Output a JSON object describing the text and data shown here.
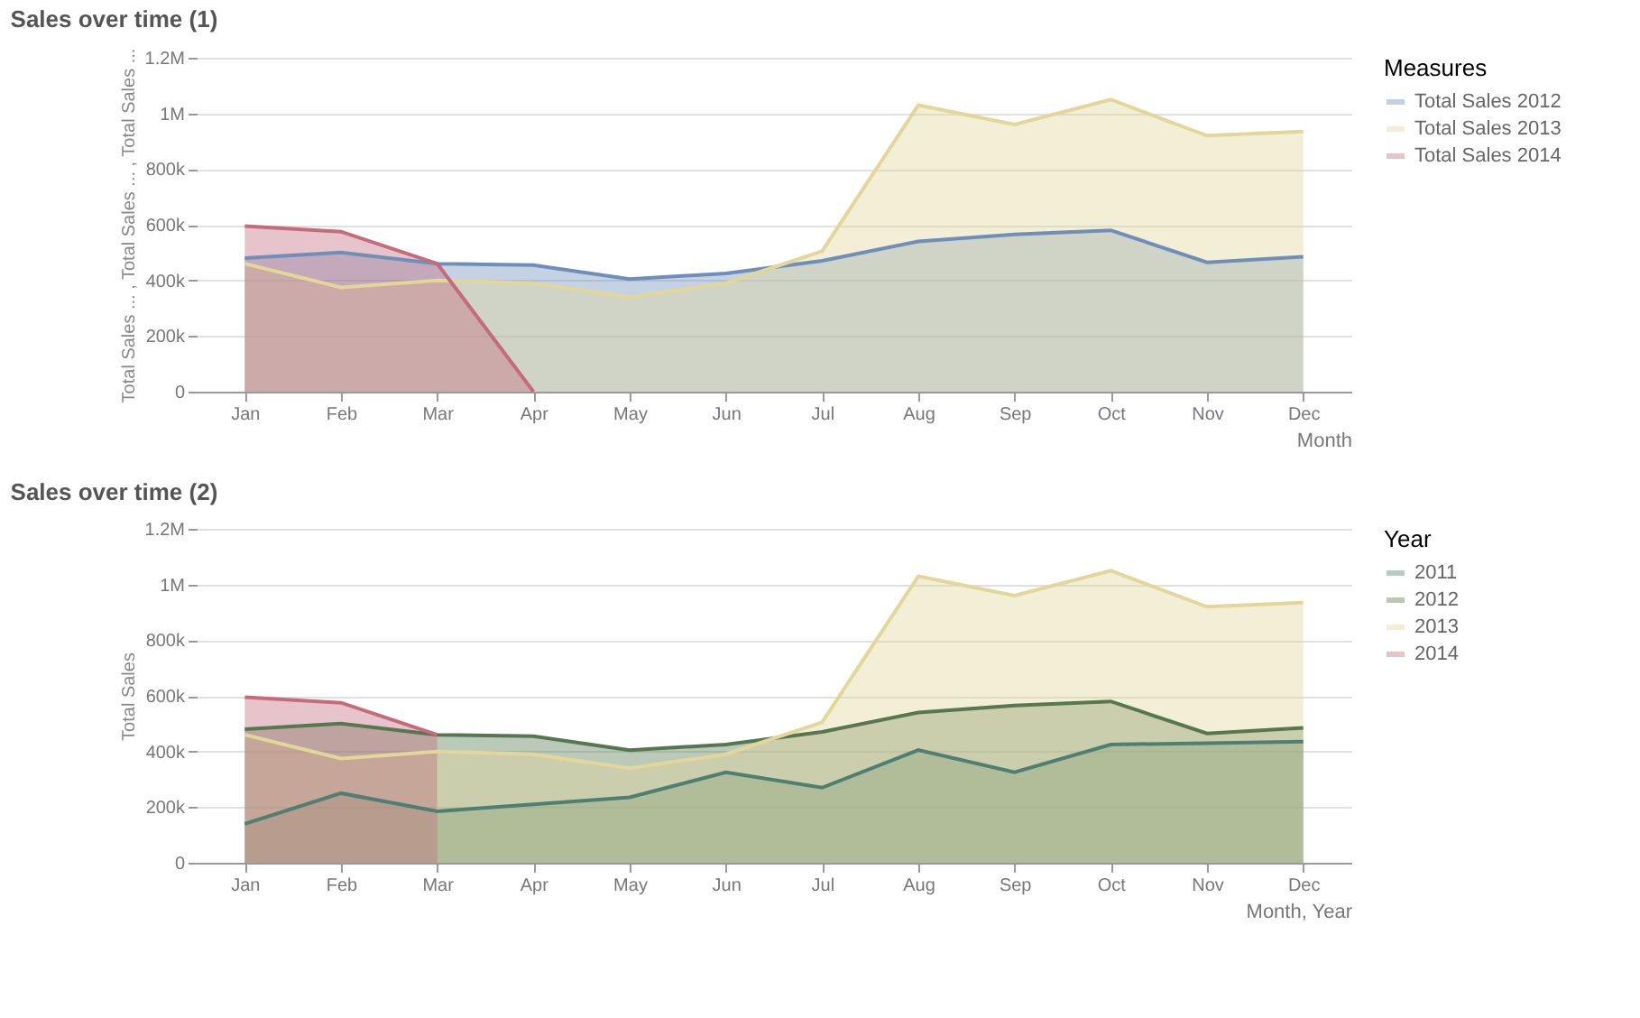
{
  "chart_data": [
    {
      "type": "area",
      "title": "Sales over time (1)",
      "xlabel": "Month",
      "ylabel": "Total Sales ... , Total Sales ... , Total Sales ...",
      "legend_title": "Measures",
      "legend": "right",
      "grid": "y",
      "categories": [
        "Jan",
        "Feb",
        "Mar",
        "Apr",
        "May",
        "Jun",
        "Jul",
        "Aug",
        "Sep",
        "Oct",
        "Nov",
        "Dec"
      ],
      "ylim": [
        0,
        1200000
      ],
      "yticks": [
        0,
        {
          "value": 200000,
          "label": "200k"
        },
        {
          "value": 400000,
          "label": "400k"
        },
        {
          "value": 600000,
          "label": "600k"
        },
        {
          "value": 800000,
          "label": "800k"
        },
        {
          "value": 1000000,
          "label": "1M"
        },
        {
          "value": 1200000,
          "label": "1.2M"
        }
      ],
      "series": [
        {
          "name": "Total Sales 2012",
          "color": "#6f8fb8",
          "values": [
            480000,
            500000,
            460000,
            455000,
            405000,
            425000,
            470000,
            540000,
            565000,
            580000,
            465000,
            485000
          ]
        },
        {
          "name": "Total Sales 2013",
          "color": "#e2d69a",
          "values": [
            460000,
            375000,
            400000,
            390000,
            340000,
            390000,
            505000,
            1030000,
            960000,
            1050000,
            920000,
            935000
          ]
        },
        {
          "name": "Total Sales 2014",
          "color": "#c46b7c",
          "values": [
            595000,
            575000,
            460000,
            0,
            null,
            null,
            null,
            null,
            null,
            null,
            null,
            null
          ]
        }
      ]
    },
    {
      "type": "area",
      "title": "Sales over time (2)",
      "xlabel": "Month, Year",
      "ylabel": "Total Sales",
      "legend_title": "Year",
      "legend": "right",
      "grid": "y",
      "categories": [
        "Jan",
        "Feb",
        "Mar",
        "Apr",
        "May",
        "Jun",
        "Jul",
        "Aug",
        "Sep",
        "Oct",
        "Nov",
        "Dec"
      ],
      "ylim": [
        0,
        1200000
      ],
      "yticks": [
        0,
        {
          "value": 200000,
          "label": "200k"
        },
        {
          "value": 400000,
          "label": "400k"
        },
        {
          "value": 600000,
          "label": "600k"
        },
        {
          "value": 800000,
          "label": "800k"
        },
        {
          "value": 1000000,
          "label": "1M"
        },
        {
          "value": 1200000,
          "label": "1.2M"
        }
      ],
      "series": [
        {
          "name": "2011",
          "color": "#4f7f73",
          "values": [
            140000,
            250000,
            185000,
            210000,
            235000,
            325000,
            270000,
            405000,
            325000,
            425000,
            430000,
            435000
          ]
        },
        {
          "name": "2012",
          "color": "#56774f",
          "values": [
            480000,
            500000,
            460000,
            455000,
            405000,
            425000,
            470000,
            540000,
            565000,
            580000,
            465000,
            485000
          ]
        },
        {
          "name": "2013",
          "color": "#e2d69a",
          "values": [
            460000,
            375000,
            400000,
            390000,
            340000,
            390000,
            505000,
            1030000,
            960000,
            1050000,
            920000,
            935000
          ]
        },
        {
          "name": "2014",
          "color": "#c46b7c",
          "values": [
            595000,
            575000,
            460000,
            null,
            null,
            null,
            null,
            null,
            null,
            null,
            null,
            null
          ]
        }
      ]
    }
  ]
}
